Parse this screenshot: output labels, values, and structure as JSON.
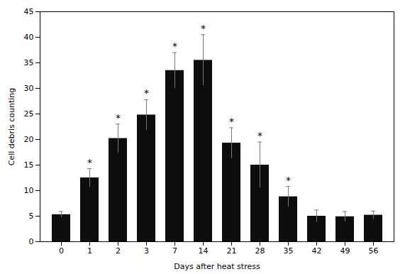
{
  "chart_data": {
    "type": "bar",
    "categories": [
      "0",
      "1",
      "2",
      "3",
      "7",
      "14",
      "21",
      "28",
      "35",
      "42",
      "49",
      "56"
    ],
    "values": [
      5.3,
      12.5,
      20.2,
      24.8,
      33.5,
      35.5,
      19.3,
      15.0,
      8.8,
      5.0,
      4.9,
      5.2
    ],
    "errors": [
      0.6,
      1.8,
      2.8,
      3.0,
      3.5,
      5.0,
      3.0,
      4.5,
      2.0,
      1.2,
      1.0,
      0.8
    ],
    "annotations": [
      {
        "category": "1",
        "text": "*"
      },
      {
        "category": "2",
        "text": "*"
      },
      {
        "category": "3",
        "text": "*"
      },
      {
        "category": "7",
        "text": "*"
      },
      {
        "category": "14",
        "text": "*"
      },
      {
        "category": "21",
        "text": "*"
      },
      {
        "category": "28",
        "text": "*"
      },
      {
        "category": "35",
        "text": "*"
      }
    ],
    "color": "#0d0d0d",
    "xlabel": "Days after heat stress",
    "ylabel": "Cell debris counting",
    "ylim": [
      0,
      45
    ],
    "yticks": [
      0,
      5,
      10,
      15,
      20,
      25,
      30,
      35,
      40,
      45
    ],
    "grid": false
  }
}
